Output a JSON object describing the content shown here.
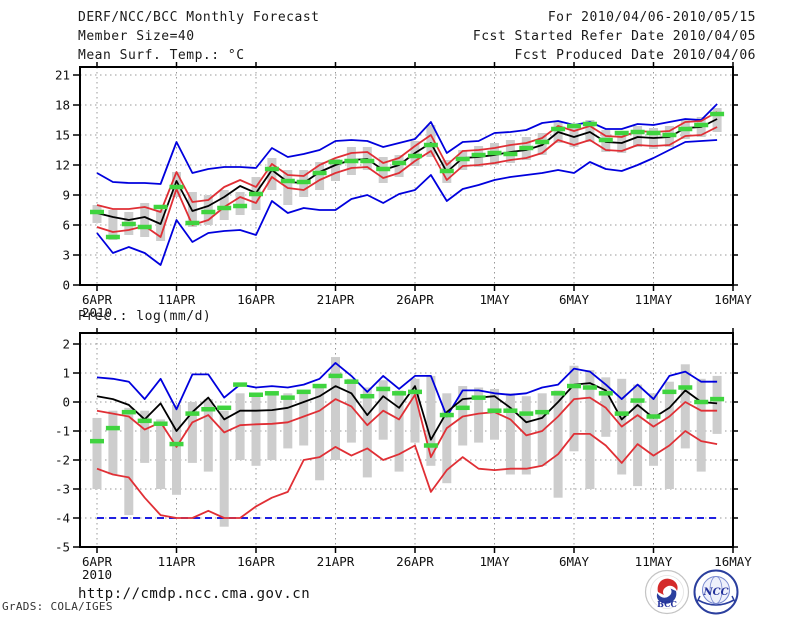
{
  "header": {
    "left": [
      "DERF/NCC/BCC Monthly Forecast",
      "Member Size=40"
    ],
    "right": [
      "For 2010/04/06-2010/05/15",
      "Fcst Started Refer Date 2010/04/05",
      "Fcst Produced Date 2010/04/06"
    ]
  },
  "footer": {
    "url": "http://cmdp.ncc.cma.gov.cn",
    "credit": "GrADS: COLA/IGES",
    "logos": [
      "BCC",
      "NCC"
    ]
  },
  "colors": {
    "blue": "#0000dd",
    "red": "#e02f35",
    "black": "#000000",
    "green": "#3fd43f",
    "bar": "#cdcdcd",
    "grid": "#989898",
    "axis": "#000000",
    "logo_navy": "#22309b",
    "logo_red": "#d42a2a"
  },
  "chart_data": [
    {
      "type": "line",
      "title": "Mean Surf. Temp.: °C",
      "x_tick_labels": [
        "6APR",
        "11APR",
        "16APR",
        "21APR",
        "26APR",
        "1MAY",
        "6MAY",
        "11MAY",
        "16MAY"
      ],
      "x_year": "2010",
      "y_ticks": [
        0,
        3,
        6,
        9,
        12,
        15,
        18,
        21
      ],
      "ylim": [
        0,
        21
      ],
      "n_points": 40,
      "series": [
        {
          "name": "blue-upper",
          "color": "blue",
          "values": [
            11.2,
            10.3,
            10.2,
            10.2,
            10.1,
            14.3,
            11.2,
            11.6,
            11.8,
            11.8,
            11.7,
            13.7,
            12.8,
            13.1,
            13.5,
            14.4,
            14.5,
            14.4,
            13.8,
            14.2,
            14.6,
            16.3,
            13.2,
            14.3,
            14.4,
            15.2,
            15.3,
            15.5,
            16.2,
            16.4,
            16.0,
            16.3,
            15.6,
            15.6,
            16.1,
            16.0,
            16.3,
            16.6,
            16.5,
            18.1
          ]
        },
        {
          "name": "blue-lower",
          "color": "blue",
          "values": [
            5.2,
            3.2,
            3.8,
            3.2,
            2.0,
            6.5,
            4.3,
            5.2,
            5.4,
            5.5,
            5.0,
            8.4,
            7.2,
            7.7,
            7.5,
            7.5,
            8.6,
            9.0,
            8.2,
            9.1,
            9.5,
            11.0,
            8.4,
            9.6,
            10.0,
            10.5,
            10.8,
            11.0,
            11.2,
            11.5,
            11.2,
            12.3,
            11.6,
            11.4,
            12.0,
            12.7,
            13.5,
            14.3,
            14.4,
            14.5
          ]
        },
        {
          "name": "red-upper",
          "color": "red",
          "values": [
            8.0,
            7.6,
            7.6,
            7.8,
            7.3,
            11.3,
            8.3,
            8.5,
            9.8,
            10.5,
            9.8,
            12.1,
            11.0,
            10.9,
            12.0,
            12.7,
            13.2,
            13.3,
            12.2,
            12.7,
            13.9,
            15.0,
            12.0,
            13.4,
            13.5,
            13.7,
            14.0,
            14.2,
            14.7,
            15.9,
            15.4,
            15.9,
            14.9,
            14.8,
            15.4,
            15.3,
            15.4,
            16.3,
            16.4,
            17.3
          ]
        },
        {
          "name": "red-lower",
          "color": "red",
          "values": [
            5.8,
            5.3,
            5.5,
            5.9,
            4.8,
            9.6,
            6.0,
            6.5,
            7.8,
            8.8,
            8.2,
            10.8,
            9.7,
            9.5,
            10.5,
            11.2,
            11.7,
            11.8,
            10.7,
            11.2,
            12.4,
            13.4,
            10.5,
            11.9,
            12.0,
            12.2,
            12.5,
            12.7,
            13.2,
            14.5,
            14.0,
            14.5,
            13.5,
            13.4,
            14.0,
            13.9,
            14.0,
            14.9,
            15.0,
            15.8
          ]
        },
        {
          "name": "black-mid",
          "color": "black",
          "values": [
            7.2,
            6.8,
            6.5,
            6.8,
            6.1,
            10.4,
            7.4,
            7.9,
            8.8,
            9.9,
            9.2,
            11.5,
            10.3,
            10.2,
            11.3,
            12.0,
            12.5,
            12.6,
            11.5,
            12.0,
            13.2,
            14.2,
            11.3,
            12.7,
            12.8,
            13.0,
            13.3,
            13.5,
            14.0,
            15.3,
            14.8,
            15.3,
            14.3,
            14.2,
            14.8,
            14.7,
            14.8,
            15.7,
            15.8,
            16.6
          ]
        }
      ],
      "dashes": {
        "name": "green-dashes",
        "color": "green",
        "values": [
          7.3,
          4.8,
          6.1,
          5.8,
          7.8,
          9.8,
          6.2,
          7.3,
          7.7,
          7.9,
          9.1,
          11.6,
          10.4,
          10.3,
          11.2,
          12.3,
          12.4,
          12.4,
          11.6,
          12.2,
          12.9,
          14.0,
          11.4,
          12.6,
          13.0,
          13.2,
          13.1,
          13.7,
          14.3,
          15.6,
          15.9,
          16.1,
          14.5,
          15.2,
          15.3,
          15.2,
          15.0,
          15.6,
          16.0,
          17.1
        ]
      },
      "bars": {
        "name": "gray-range-bars",
        "low": [
          6.2,
          4.5,
          5.0,
          4.8,
          4.4,
          8.8,
          5.8,
          6.0,
          6.5,
          7.0,
          7.5,
          9.5,
          8.0,
          8.8,
          9.5,
          10.4,
          11.0,
          11.5,
          10.2,
          10.8,
          11.9,
          12.8,
          10.2,
          11.5,
          11.8,
          12.0,
          12.2,
          12.5,
          13.0,
          14.2,
          13.8,
          14.3,
          13.3,
          13.2,
          13.8,
          13.6,
          13.8,
          14.6,
          14.8,
          15.3
        ],
        "high": [
          8.0,
          7.5,
          7.3,
          8.2,
          7.5,
          11.3,
          9.3,
          9.0,
          9.5,
          9.3,
          10.8,
          12.7,
          11.5,
          11.5,
          12.3,
          12.6,
          13.8,
          13.8,
          12.8,
          13.0,
          14.4,
          16.0,
          12.5,
          13.5,
          13.9,
          14.2,
          14.5,
          14.8,
          15.2,
          16.3,
          15.8,
          16.5,
          15.5,
          15.2,
          15.9,
          15.7,
          15.9,
          16.6,
          16.8,
          17.7
        ]
      }
    },
    {
      "type": "line",
      "title": "Prec.: log(mm/d)",
      "x_tick_labels": [
        "6APR",
        "11APR",
        "16APR",
        "21APR",
        "26APR",
        "1MAY",
        "6MAY",
        "11MAY",
        "16MAY"
      ],
      "x_year": "2010",
      "y_ticks": [
        -5,
        -4,
        -3,
        -2,
        -1,
        0,
        1,
        2
      ],
      "ylim": [
        -5,
        2
      ],
      "n_points": 40,
      "series": [
        {
          "name": "blue-upper",
          "color": "blue",
          "values": [
            0.85,
            0.8,
            0.7,
            0.1,
            0.8,
            -0.25,
            0.95,
            0.95,
            0.15,
            0.6,
            0.5,
            0.55,
            0.5,
            0.6,
            0.8,
            1.35,
            0.9,
            0.35,
            0.9,
            0.45,
            0.9,
            0.9,
            -0.5,
            0.4,
            0.4,
            0.3,
            0.25,
            0.3,
            0.5,
            0.6,
            1.15,
            1.05,
            0.6,
            0.1,
            0.6,
            0.1,
            0.9,
            1.05,
            0.7,
            0.7
          ]
        },
        {
          "name": "blue-lower",
          "color": "blue",
          "dashed": true,
          "values": [
            -4.0,
            -4.0,
            -4.0,
            -4.0,
            -4.0,
            -4.0,
            -4.0,
            -4.0,
            -4.0,
            -4.0,
            -4.0,
            -4.0,
            -4.0,
            -4.0,
            -4.0,
            -4.0,
            -4.0,
            -4.0,
            -4.0,
            -4.0,
            -4.0,
            -4.0,
            -4.0,
            -4.0,
            -4.0,
            -4.0,
            -4.0,
            -4.0,
            -4.0,
            -4.0,
            -4.0,
            -4.0,
            -4.0,
            -4.0,
            -4.0,
            -4.0,
            -4.0,
            -4.0,
            -4.0,
            -4.0
          ]
        },
        {
          "name": "red-upper",
          "color": "red",
          "values": [
            -0.3,
            -0.4,
            -0.5,
            -0.95,
            -0.7,
            -1.55,
            -0.7,
            -0.45,
            -1.05,
            -0.8,
            -0.77,
            -0.75,
            -0.7,
            -0.5,
            -0.3,
            0.1,
            -0.15,
            -0.8,
            -0.3,
            -0.6,
            0.25,
            -1.9,
            -0.9,
            -0.5,
            -0.4,
            -0.35,
            -0.6,
            -1.15,
            -1.0,
            -0.5,
            0.1,
            0.15,
            -0.2,
            -0.85,
            -0.45,
            -0.85,
            -0.5,
            0.0,
            -0.3,
            -0.3
          ]
        },
        {
          "name": "red-lower",
          "color": "red",
          "values": [
            -2.3,
            -2.5,
            -2.6,
            -3.3,
            -3.9,
            -4.0,
            -4.0,
            -3.75,
            -4.0,
            -4.0,
            -3.6,
            -3.3,
            -3.1,
            -2.0,
            -1.9,
            -1.55,
            -1.85,
            -1.6,
            -2.0,
            -1.8,
            -1.5,
            -3.1,
            -2.35,
            -1.9,
            -2.3,
            -2.35,
            -2.3,
            -2.3,
            -2.2,
            -1.8,
            -1.1,
            -1.1,
            -1.5,
            -2.1,
            -1.45,
            -1.85,
            -1.5,
            -1.0,
            -1.35,
            -1.45
          ]
        },
        {
          "name": "black-mid",
          "color": "black",
          "values": [
            0.2,
            0.1,
            -0.1,
            -0.6,
            -0.05,
            -1.0,
            -0.35,
            0.15,
            -0.6,
            -0.3,
            -0.3,
            -0.28,
            -0.2,
            0.0,
            0.2,
            0.55,
            0.3,
            -0.45,
            0.2,
            -0.2,
            0.55,
            -1.3,
            -0.35,
            0.1,
            0.15,
            0.2,
            -0.2,
            -0.7,
            -0.55,
            0.0,
            0.6,
            0.65,
            0.4,
            -0.6,
            -0.1,
            -0.55,
            -0.2,
            0.4,
            0.0,
            -0.05
          ]
        }
      ],
      "dashes": {
        "name": "green-dashes",
        "color": "green",
        "values": [
          -1.35,
          -0.9,
          -0.35,
          -0.65,
          -0.75,
          -1.45,
          -0.4,
          -0.25,
          -0.2,
          0.6,
          0.25,
          0.3,
          0.15,
          0.35,
          0.55,
          0.9,
          0.7,
          0.2,
          0.45,
          0.3,
          0.35,
          -1.5,
          -0.45,
          -0.2,
          0.15,
          -0.3,
          -0.3,
          -0.4,
          -0.35,
          0.3,
          0.55,
          0.5,
          0.3,
          -0.4,
          0.05,
          -0.5,
          0.35,
          0.5,
          0.0,
          0.1
        ]
      },
      "bars": {
        "name": "gray-range-bars",
        "low": [
          -3.0,
          -2.5,
          -3.9,
          -2.1,
          -3.0,
          -3.2,
          -2.1,
          -2.4,
          -4.3,
          -2.0,
          -2.2,
          -2.0,
          -1.6,
          -1.5,
          -2.7,
          -2.0,
          -1.4,
          -2.6,
          -1.3,
          -2.4,
          -1.4,
          -2.2,
          -2.8,
          -1.5,
          -1.4,
          -1.3,
          -2.5,
          -2.5,
          -2.2,
          -3.3,
          -1.7,
          -3.0,
          -1.2,
          -2.5,
          -2.9,
          -2.2,
          -3.0,
          -1.6,
          -2.4,
          -1.1
        ],
        "high": [
          -0.55,
          -0.3,
          -0.2,
          -0.3,
          -0.6,
          -0.1,
          0.0,
          0.1,
          -0.3,
          0.3,
          0.2,
          0.25,
          0.3,
          0.3,
          0.5,
          1.55,
          0.8,
          0.5,
          0.75,
          0.4,
          0.8,
          0.9,
          0.3,
          0.55,
          0.5,
          0.45,
          0.3,
          0.2,
          0.3,
          0.4,
          1.25,
          1.1,
          0.85,
          0.8,
          0.6,
          0.3,
          0.7,
          1.3,
          0.8,
          0.9
        ]
      }
    }
  ]
}
